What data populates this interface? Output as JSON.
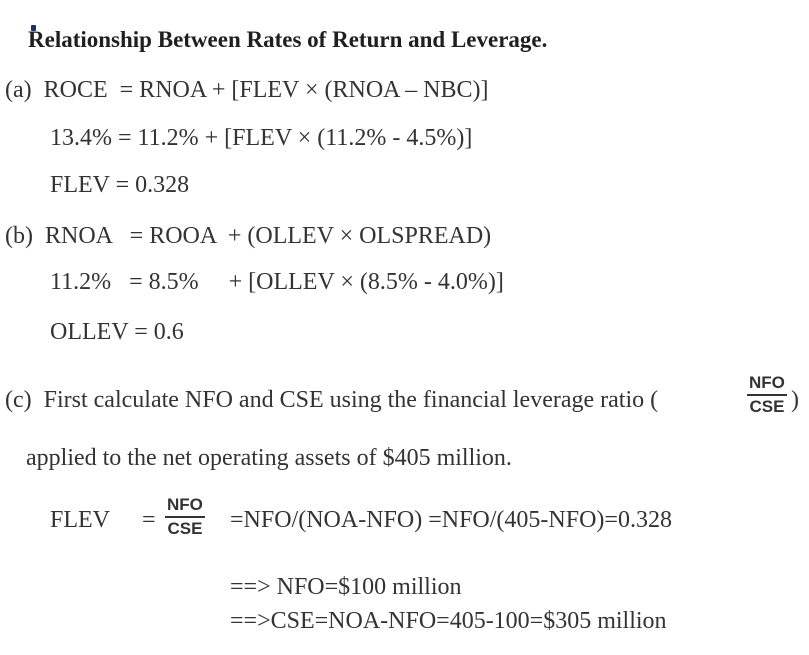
{
  "title": "Relationship Between Rates of Return and Leverage.",
  "part_a": {
    "line1": "(a)  ROCE  = RNOA + [FLEV × (RNOA – NBC)]",
    "line2": "13.4% = 11.2% + [FLEV × (11.2% - 4.5%)]",
    "line3": "FLEV = 0.328"
  },
  "part_b": {
    "line1": "(b)  RNOA   = ROOA  + (OLLEV × OLSPREAD)",
    "line2": "11.2%   = 8.5%     + [OLLEV × (8.5% - 4.0%)]",
    "line3": "OLLEV = 0.6"
  },
  "part_c": {
    "line1": "(c)  First calculate NFO and CSE using the financial leverage ratio (",
    "ratio_num": "NFO",
    "ratio_den": "CSE",
    "close_paren": ")",
    "line2": "applied to the net operating assets of $405 million.",
    "flev_label": "FLEV",
    "equals": "=",
    "frac_num": "NFO",
    "frac_den": "CSE",
    "flev_expr": "=NFO/(NOA-NFO) =NFO/(405-NFO)=0.328",
    "result1": "==> NFO=$100 million",
    "result2": "==>CSE=NOA-NFO=405-100=$305 million"
  }
}
